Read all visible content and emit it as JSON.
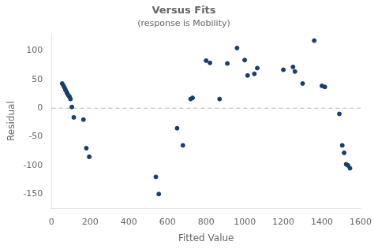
{
  "chart_data": {
    "type": "scatter",
    "title": "Versus Fits",
    "subtitle": "(response is Mobility)",
    "xlabel": "Fitted Value",
    "ylabel": "Residual",
    "color": "#1a3d6e",
    "xlim": [
      0,
      1600
    ],
    "ylim": [
      -175,
      130
    ],
    "xticks": [
      0,
      200,
      400,
      600,
      800,
      1000,
      1200,
      1400,
      1600
    ],
    "yticks": [
      -150,
      -100,
      -50,
      0,
      50,
      100
    ],
    "grid": false,
    "x": [
      55,
      62,
      67,
      72,
      78,
      82,
      88,
      93,
      98,
      105,
      115,
      165,
      180,
      195,
      540,
      555,
      650,
      680,
      720,
      730,
      800,
      820,
      870,
      910,
      960,
      1000,
      1015,
      1050,
      1065,
      1200,
      1250,
      1260,
      1300,
      1360,
      1400,
      1415,
      1490,
      1505,
      1515,
      1525,
      1535,
      1545
    ],
    "y": [
      43,
      39,
      36,
      32,
      28,
      25,
      22,
      20,
      16,
      2,
      -16,
      -20,
      -70,
      -85,
      -120,
      -150,
      -35,
      -65,
      16,
      18,
      83,
      79,
      16,
      78,
      105,
      84,
      57,
      60,
      70,
      67,
      72,
      64,
      43,
      118,
      39,
      37,
      -10,
      -65,
      -78,
      -98,
      -100,
      -105
    ]
  }
}
